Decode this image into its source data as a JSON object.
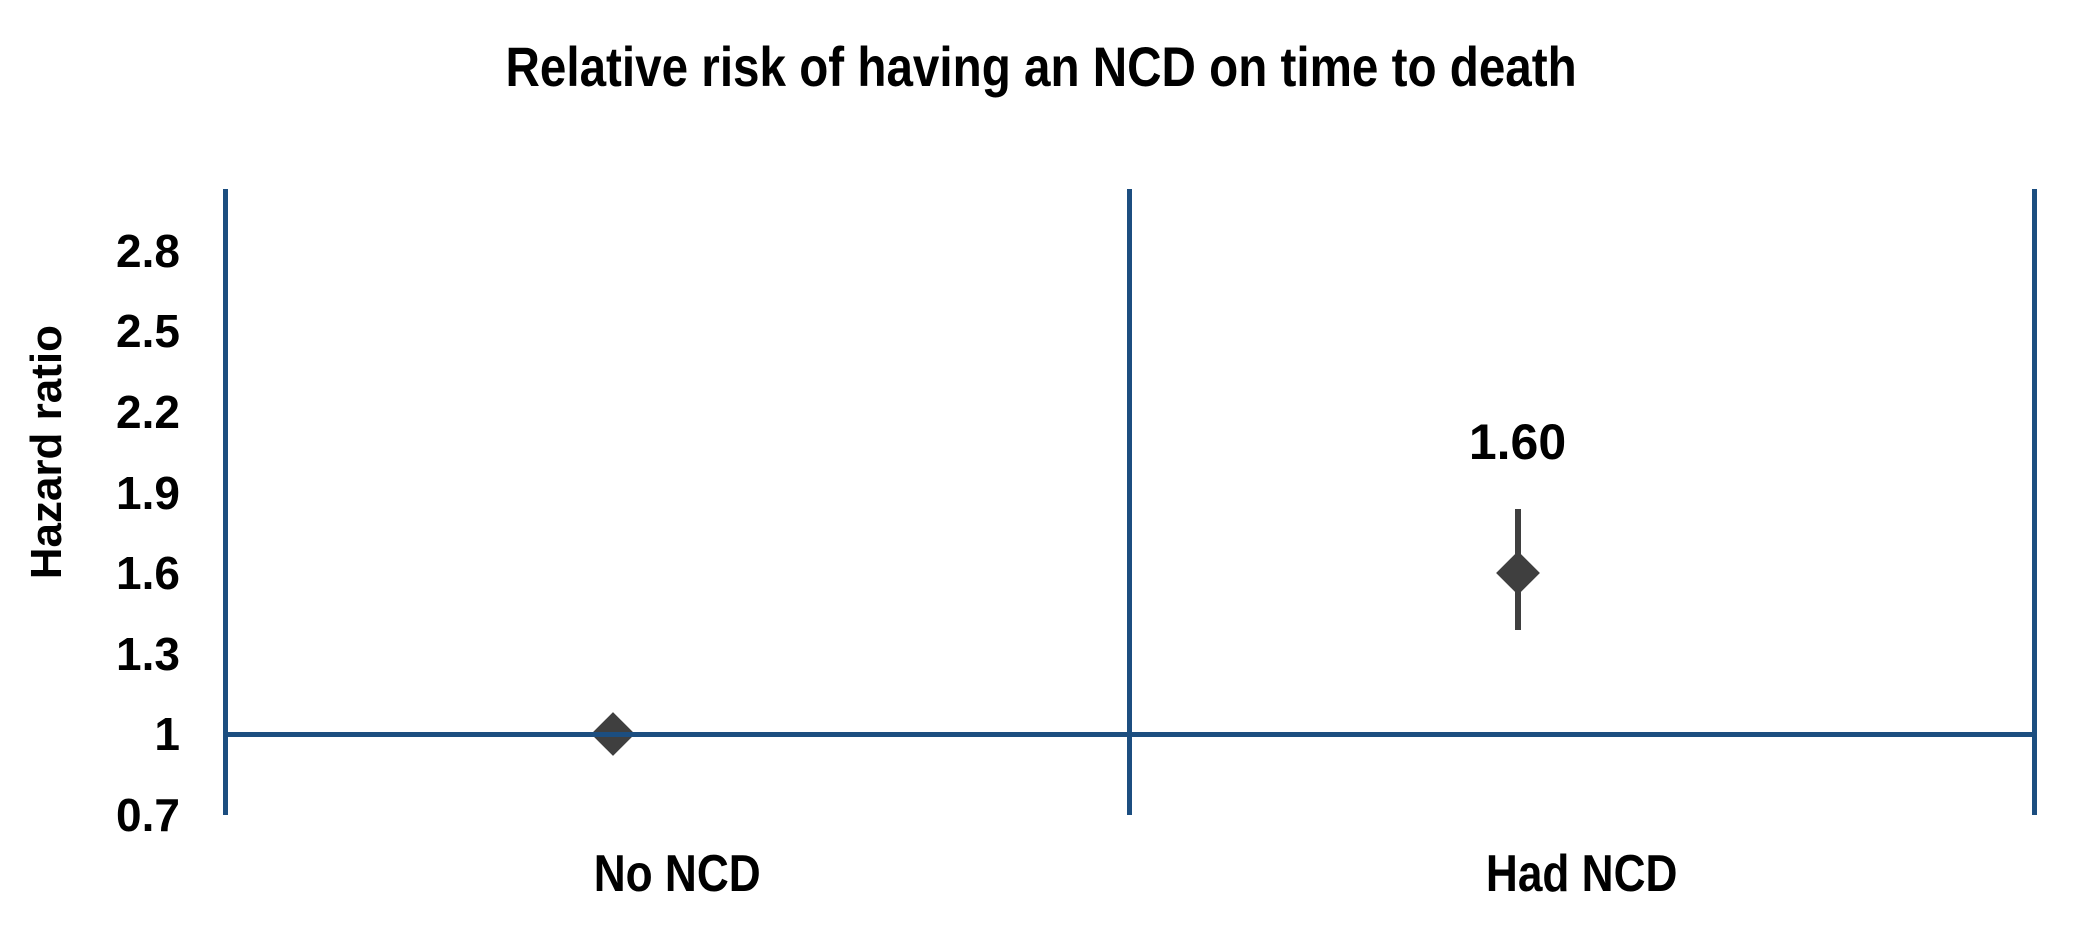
{
  "chart_data": {
    "type": "scatter",
    "title": "Relative risk of having an NCD on time to death",
    "ylabel": "Hazard ratio",
    "xlabel": "",
    "categories": [
      "No NCD",
      "Had NCD"
    ],
    "series": [
      {
        "name": "Hazard ratio",
        "points": [
          {
            "category": "No NCD",
            "hr": 1.0,
            "ci_low": null,
            "ci_high": null,
            "value_label": ""
          },
          {
            "category": "Had NCD",
            "hr": 1.6,
            "ci_low": 1.39,
            "ci_high": 1.84,
            "value_label": "1.60"
          }
        ]
      }
    ],
    "baseline": 1.0,
    "ylim": [
      0.7,
      3.03
    ],
    "yticks": [
      {
        "value": 2.8,
        "label": "2.8"
      },
      {
        "value": 2.5,
        "label": "2.5"
      },
      {
        "value": 2.2,
        "label": "2.2"
      },
      {
        "value": 1.9,
        "label": "1.9"
      },
      {
        "value": 1.6,
        "label": "1.6"
      },
      {
        "value": 1.3,
        "label": "1.3"
      },
      {
        "value": 1.0,
        "label": "1"
      },
      {
        "value": 0.7,
        "label": "0.7"
      }
    ],
    "grid": "vertical category divider lines only, no horizontal gridlines",
    "legend": "none",
    "marker_shape": "diamond",
    "colors": {
      "axis_line": "#1C4E80",
      "marker": "#3F3F3F",
      "error_bar": "#3F3F3F",
      "text": "#000000",
      "background": "#FFFFFF"
    }
  }
}
